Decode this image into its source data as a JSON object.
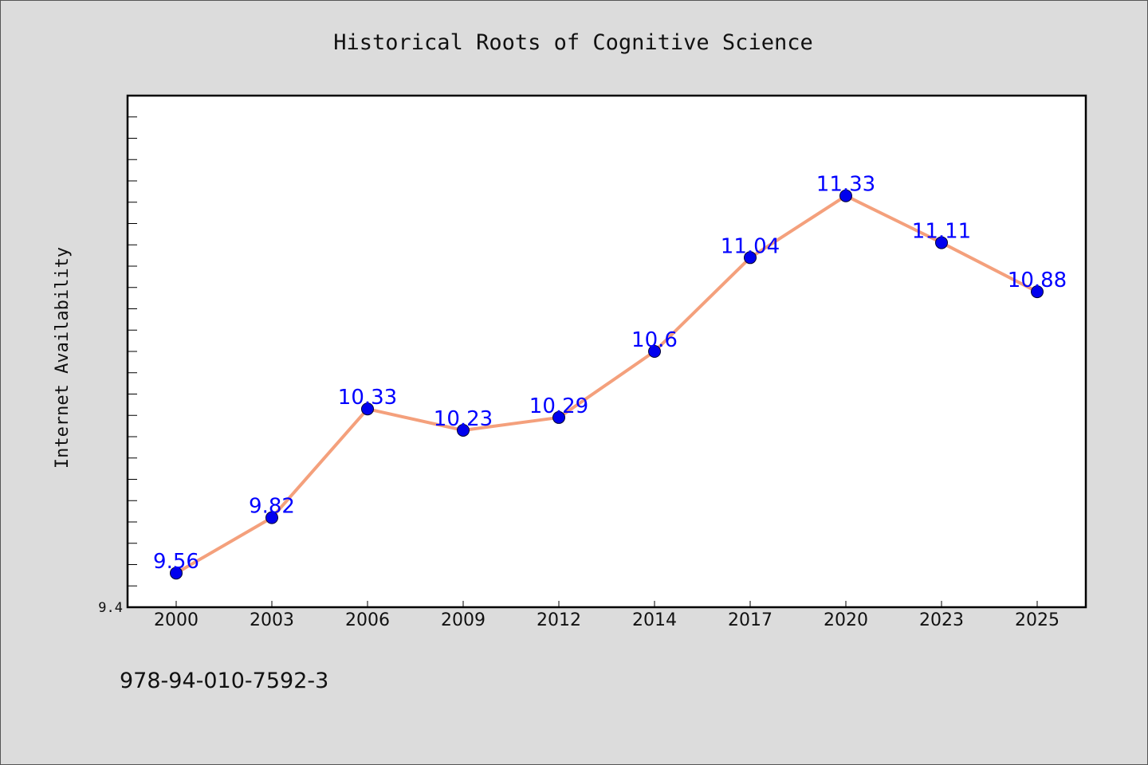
{
  "chart_data": {
    "type": "line",
    "title": "Historical Roots of Cognitive Science",
    "xlabel": "",
    "ylabel": "Internet Availability",
    "categories": [
      "2000",
      "2003",
      "2006",
      "2009",
      "2012",
      "2014",
      "2017",
      "2020",
      "2023",
      "2025"
    ],
    "series": [
      {
        "values": [
          9.56,
          9.82,
          10.33,
          10.23,
          10.29,
          10.6,
          11.04,
          11.33,
          11.11,
          10.88
        ]
      }
    ],
    "data_labels": [
      "9.56",
      "9.82",
      "10.33",
      "10.23",
      "10.29",
      "10.6",
      "11.04",
      "11.33",
      "11.11",
      "10.88"
    ],
    "ylim": [
      9.4,
      11.8
    ],
    "ytick_labels": [
      "9.4"
    ],
    "grid": false,
    "legend": "none"
  },
  "footer": {
    "isbn": "978-94-010-7592-3"
  },
  "colors": {
    "background": "#dcdcdc",
    "plot_background": "#ffffff",
    "line": "#f4a07c",
    "marker": "#0000ee",
    "label": "#0000ff"
  }
}
